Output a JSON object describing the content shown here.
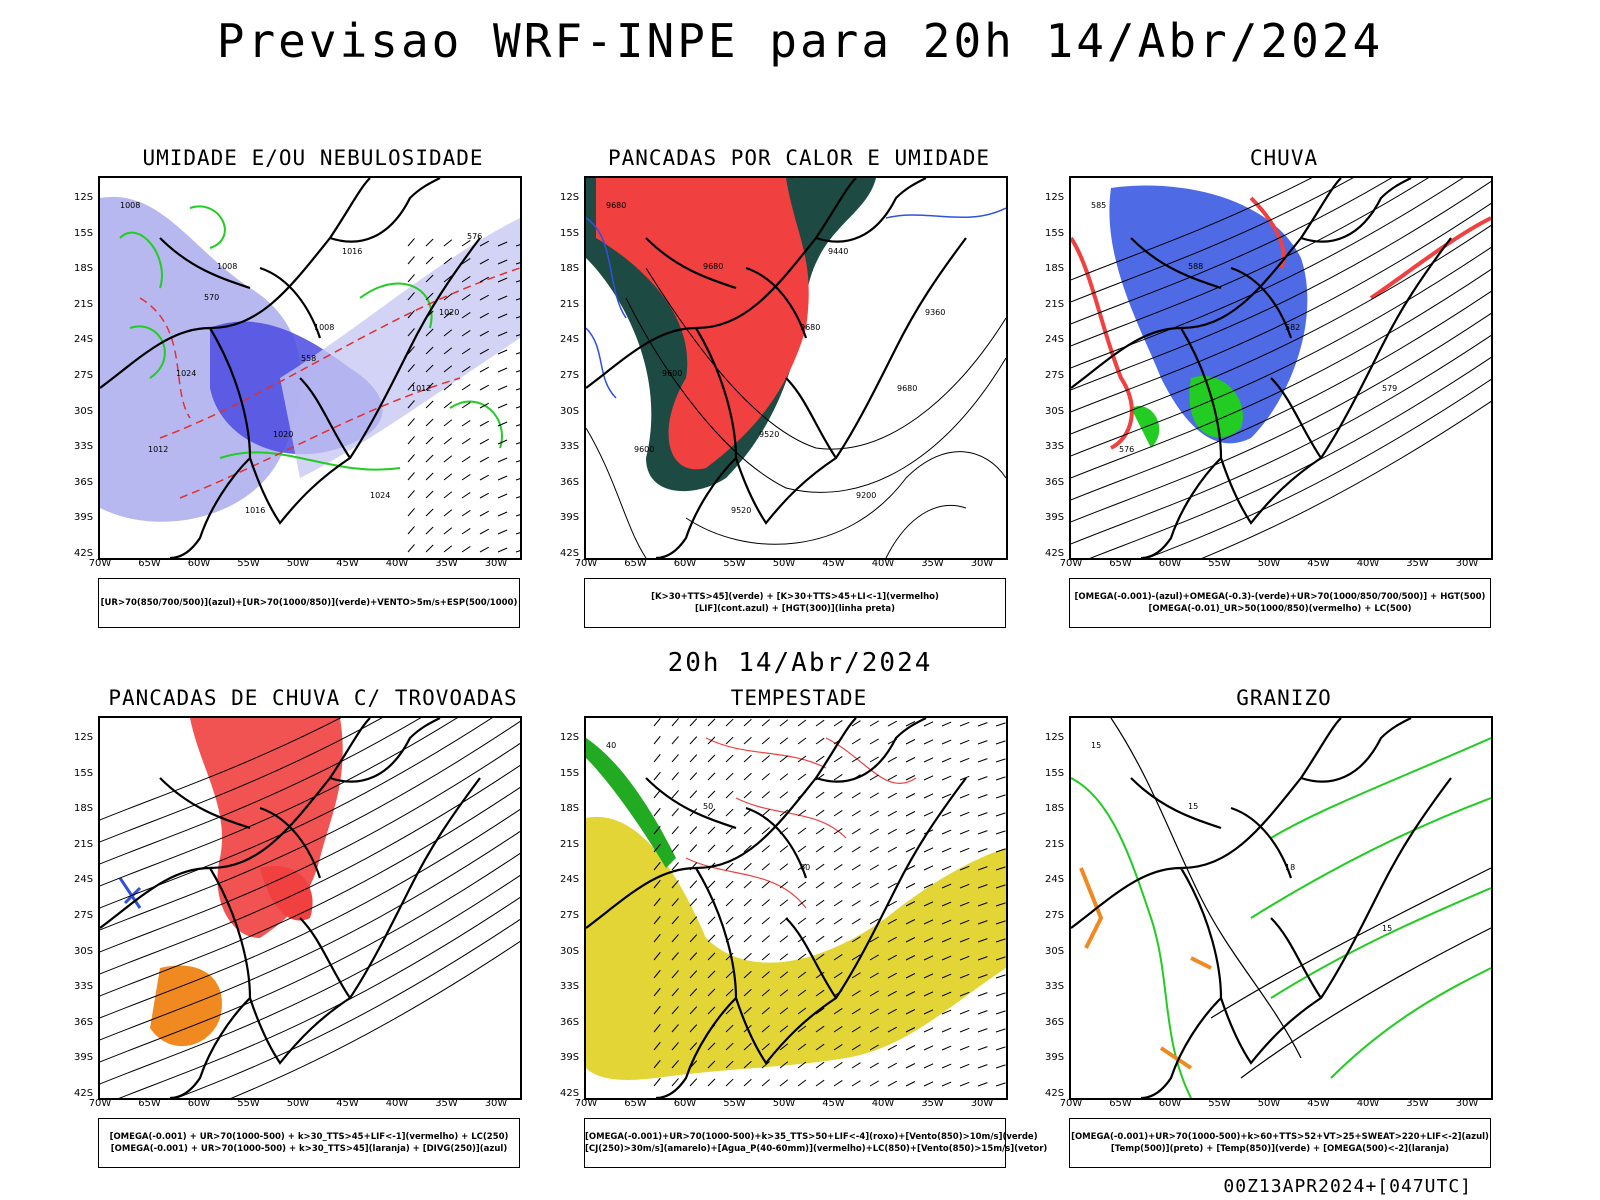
{
  "header": {
    "title": "Previsao WRF-INPE  para 20h 14/Abr/2024"
  },
  "mid_title": "20h 14/Abr/2024",
  "footer": "00Z13APR2024+[047UTC]",
  "axes": {
    "lat_ticks": [
      "12S",
      "15S",
      "18S",
      "21S",
      "24S",
      "27S",
      "30S",
      "33S",
      "36S",
      "39S",
      "42S"
    ],
    "lon_ticks": [
      "70W",
      "65W",
      "60W",
      "55W",
      "50W",
      "45W",
      "40W",
      "35W",
      "30W"
    ]
  },
  "colors": {
    "blue_dark": "#4040e0",
    "blue_light": "#b8b8f0",
    "green": "#22cc22",
    "red": "#f04040",
    "dark_teal": "#1e4a44",
    "orange": "#f08a20",
    "yellow": "#e0d020",
    "contour": "#000000"
  },
  "panels": [
    {
      "title": "UMIDADE E/OU NEBULOSIDADE",
      "legend": [
        "[UR>70(850/700/500)](azul)+[UR>70(1000/850)](verde)+VENTO>5m/s+ESP(500/1000)"
      ],
      "contour_labels": [
        "1008",
        "1008",
        "1008",
        "1012",
        "1012",
        "1016",
        "1016",
        "1020",
        "1024",
        "1020",
        "1024",
        "576",
        "570",
        "558"
      ]
    },
    {
      "title": "PANCADAS POR CALOR E UMIDADE",
      "legend": [
        "[K>30+TTS>45](verde) + [K>30+TTS>45+LI<-1](vermelho)",
        "[LIF](cont.azul) + [HGT(300)](linha preta)"
      ],
      "contour_labels": [
        "9680",
        "9680",
        "9680",
        "9680",
        "9600",
        "9520",
        "9440",
        "9360",
        "9600",
        "9520",
        "9200"
      ]
    },
    {
      "title": "CHUVA",
      "legend": [
        "[OMEGA(-0.001)-(azul)+OMEGA(-0.3)-(verde)+UR>70(1000/850/700/500)] + HGT(500)",
        "[OMEGA(-0.01)_UR>50(1000/850)(vermelho) + LC(500)"
      ],
      "contour_labels": [
        "585",
        "588",
        "582",
        "579",
        "576"
      ]
    },
    {
      "title": "PANCADAS DE CHUVA C/ TROVOADAS",
      "legend": [
        "[OMEGA(-0.001) + UR>70(1000-500) + k>30_TTS>45+LIF<-1](vermelho) + LC(250)",
        "[OMEGA(-0.001) + UR>70(1000-500) + k>30_TTS>45](laranja) + [DIVG(250)](azul)"
      ],
      "contour_labels": []
    },
    {
      "title": "TEMPESTADE",
      "legend": [
        "[OMEGA(-0.001)+UR>70(1000-500)+k>35_TTS>50+LIF<-4](roxo)+[Vento(850)>10m/s](verde)",
        "[CJ(250)>30m/s](amarelo)+[Agua_P(40-60mm)](vermelho)+LC(850)+[Vento(850)>15m/s](vetor)"
      ],
      "contour_labels": [
        "40",
        "50",
        "60"
      ]
    },
    {
      "title": "GRANIZO",
      "legend": [
        "[OMEGA(-0.001)+UR>70(1000-500)+k>60+TTS>52+VT>25+SWEAT>220+LIF<-2](azul)",
        "[Temp(500)](preto) + [Temp(850)](verde) + [OMEGA(500)<-2](laranja)"
      ],
      "contour_labels": [
        "15",
        "15",
        "18",
        "15"
      ]
    }
  ]
}
